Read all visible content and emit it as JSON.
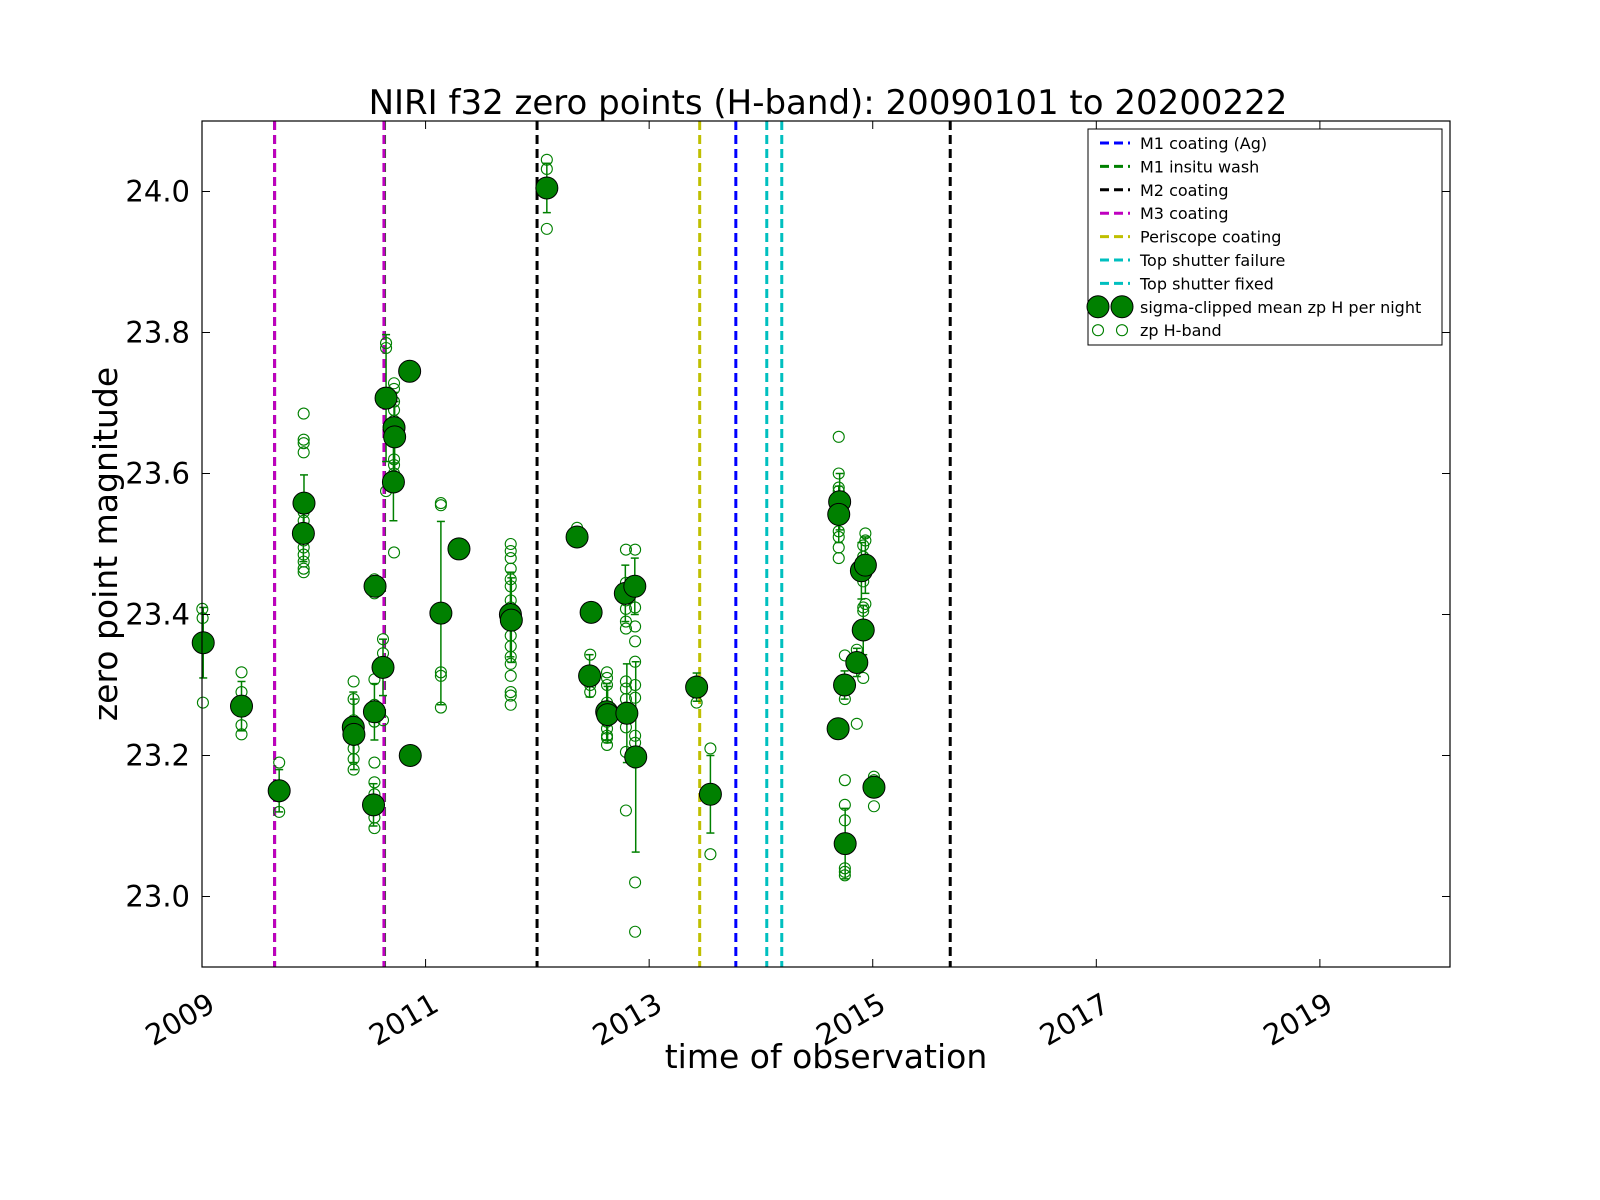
{
  "chart_data": {
    "type": "scatter",
    "title": "NIRI f32 zero points (H-band): 20090101 to 20200222",
    "xlabel": "time of observation",
    "ylabel": "zero point magnitude",
    "xlim": [
      "2009-01-01",
      "2020-03-01"
    ],
    "ylim": [
      22.9,
      24.1
    ],
    "x_ticks": [
      "2009",
      "2011",
      "2013",
      "2015",
      "2017",
      "2019"
    ],
    "y_ticks": [
      "23.0",
      "23.2",
      "23.4",
      "23.6",
      "23.8",
      "24.0"
    ],
    "legend_position": "top-right",
    "grid": false,
    "vlines": [
      {
        "label": "M1 coating (Ag)",
        "color": "#0000ff",
        "dates": [
          "2013-10-11"
        ]
      },
      {
        "label": "M1 insitu wash",
        "color": "#008000",
        "dates": [
          "2009-08-26",
          "2010-08-20"
        ]
      },
      {
        "label": "M2 coating",
        "color": "#000000",
        "dates": [
          "2011-12-31",
          "2015-09-11"
        ]
      },
      {
        "label": "M3 coating",
        "color": "#bf00bf",
        "dates": [
          "2009-08-26",
          "2010-08-18"
        ]
      },
      {
        "label": "Periscope coating",
        "color": "#bfbf00",
        "dates": [
          "2013-06-15"
        ]
      },
      {
        "label": "Top shutter failure",
        "color": "#00bfbf",
        "dates": [
          "2014-01-20"
        ]
      },
      {
        "label": "Top shutter fixed",
        "color": "#00bfbf",
        "dates": [
          "2014-03-10"
        ]
      }
    ],
    "series": [
      {
        "name": "sigma-clipped mean zp H per night",
        "marker": "filled-circle",
        "color": "#008000",
        "points": [
          {
            "x": "2009-01-05",
            "y": 23.36,
            "err": 0.05
          },
          {
            "x": "2009-05-10",
            "y": 23.27,
            "err": 0.035
          },
          {
            "x": "2009-09-10",
            "y": 23.15,
            "err": 0.03
          },
          {
            "x": "2009-11-28",
            "y": 23.515,
            "err": 0.04
          },
          {
            "x": "2009-11-30",
            "y": 23.558,
            "err": 0.04
          },
          {
            "x": "2010-05-10",
            "y": 23.24,
            "err": 0.05
          },
          {
            "x": "2010-05-12",
            "y": 23.23,
            "err": 0.05
          },
          {
            "x": "2010-07-20",
            "y": 23.44,
            "err": 0.01
          },
          {
            "x": "2010-07-18",
            "y": 23.262,
            "err": 0.04
          },
          {
            "x": "2010-07-15",
            "y": 23.13,
            "err": 0.03
          },
          {
            "x": "2010-08-15",
            "y": 23.325,
            "err": 0.04
          },
          {
            "x": "2010-08-25",
            "y": 23.707,
            "err": 0.09
          },
          {
            "x": "2010-09-20",
            "y": 23.665,
            "err": 0.05
          },
          {
            "x": "2010-09-22",
            "y": 23.652,
            "err": 0.05
          },
          {
            "x": "2010-09-18",
            "y": 23.588,
            "err": 0.055
          },
          {
            "x": "2010-11-10",
            "y": 23.745,
            "err": 0.0
          },
          {
            "x": "2010-11-12",
            "y": 23.2,
            "err": 0.0
          },
          {
            "x": "2011-02-20",
            "y": 23.402,
            "err": 0.13
          },
          {
            "x": "2011-04-20",
            "y": 23.493,
            "err": 0.0
          },
          {
            "x": "2011-10-05",
            "y": 23.4,
            "err": 0.06
          },
          {
            "x": "2011-10-08",
            "y": 23.392,
            "err": 0.06
          },
          {
            "x": "2012-02-01",
            "y": 24.005,
            "err": 0.035
          },
          {
            "x": "2012-05-10",
            "y": 23.51,
            "err": 0.01
          },
          {
            "x": "2012-06-25",
            "y": 23.403,
            "err": 0.0
          },
          {
            "x": "2012-06-20",
            "y": 23.313,
            "err": 0.03
          },
          {
            "x": "2012-08-15",
            "y": 23.262,
            "err": 0.04
          },
          {
            "x": "2012-08-18",
            "y": 23.258,
            "err": 0.04
          },
          {
            "x": "2012-10-15",
            "y": 23.43,
            "err": 0.04
          },
          {
            "x": "2012-10-20",
            "y": 23.26,
            "err": 0.07
          },
          {
            "x": "2012-11-15",
            "y": 23.44,
            "err": 0.04
          },
          {
            "x": "2012-11-18",
            "y": 23.198,
            "err": 0.135
          },
          {
            "x": "2013-06-05",
            "y": 23.297,
            "err": 0.02
          },
          {
            "x": "2013-07-20",
            "y": 23.145,
            "err": 0.055
          },
          {
            "x": "2014-09-15",
            "y": 23.56,
            "err": 0.04
          },
          {
            "x": "2014-09-12",
            "y": 23.542,
            "err": 0.04
          },
          {
            "x": "2014-09-10",
            "y": 23.238,
            "err": 0.01
          },
          {
            "x": "2014-10-01",
            "y": 23.3,
            "err": 0.02
          },
          {
            "x": "2014-10-03",
            "y": 23.075,
            "err": 0.05
          },
          {
            "x": "2014-11-10",
            "y": 23.332,
            "err": 0.02
          },
          {
            "x": "2014-11-25",
            "y": 23.462,
            "err": 0.04
          },
          {
            "x": "2014-12-01",
            "y": 23.378,
            "err": 0.035
          },
          {
            "x": "2014-12-08",
            "y": 23.47,
            "err": 0.04
          },
          {
            "x": "2015-01-05",
            "y": 23.155,
            "err": 0.01
          }
        ]
      },
      {
        "name": "zp H-band",
        "marker": "open-circle",
        "color": "#008000",
        "points": [
          {
            "x": "2009-01-02",
            "y": 23.408
          },
          {
            "x": "2009-01-03",
            "y": 23.395
          },
          {
            "x": "2009-01-04",
            "y": 23.275
          },
          {
            "x": "2009-05-10",
            "y": 23.318
          },
          {
            "x": "2009-05-10",
            "y": 23.29
          },
          {
            "x": "2009-05-10",
            "y": 23.243
          },
          {
            "x": "2009-05-10",
            "y": 23.23
          },
          {
            "x": "2009-09-10",
            "y": 23.19
          },
          {
            "x": "2009-09-10",
            "y": 23.142
          },
          {
            "x": "2009-09-10",
            "y": 23.12
          },
          {
            "x": "2009-11-29",
            "y": 23.685
          },
          {
            "x": "2009-11-29",
            "y": 23.648
          },
          {
            "x": "2009-11-29",
            "y": 23.643
          },
          {
            "x": "2009-11-29",
            "y": 23.63
          },
          {
            "x": "2009-11-29",
            "y": 23.545
          },
          {
            "x": "2009-11-29",
            "y": 23.533
          },
          {
            "x": "2009-11-29",
            "y": 23.52
          },
          {
            "x": "2009-11-29",
            "y": 23.505
          },
          {
            "x": "2009-11-29",
            "y": 23.495
          },
          {
            "x": "2009-11-29",
            "y": 23.485
          },
          {
            "x": "2009-11-29",
            "y": 23.475
          },
          {
            "x": "2009-11-29",
            "y": 23.465
          },
          {
            "x": "2009-11-29",
            "y": 23.46
          },
          {
            "x": "2010-05-11",
            "y": 23.305
          },
          {
            "x": "2010-05-11",
            "y": 23.28
          },
          {
            "x": "2010-05-11",
            "y": 23.25
          },
          {
            "x": "2010-05-11",
            "y": 23.222
          },
          {
            "x": "2010-05-11",
            "y": 23.21
          },
          {
            "x": "2010-05-11",
            "y": 23.195
          },
          {
            "x": "2010-05-11",
            "y": 23.18
          },
          {
            "x": "2010-07-18",
            "y": 23.45
          },
          {
            "x": "2010-07-18",
            "y": 23.435
          },
          {
            "x": "2010-07-18",
            "y": 23.43
          },
          {
            "x": "2010-07-18",
            "y": 23.308
          },
          {
            "x": "2010-07-18",
            "y": 23.272
          },
          {
            "x": "2010-07-18",
            "y": 23.248
          },
          {
            "x": "2010-07-18",
            "y": 23.19
          },
          {
            "x": "2010-07-18",
            "y": 23.162
          },
          {
            "x": "2010-07-18",
            "y": 23.145
          },
          {
            "x": "2010-07-18",
            "y": 23.112
          },
          {
            "x": "2010-07-18",
            "y": 23.097
          },
          {
            "x": "2010-08-15",
            "y": 23.365
          },
          {
            "x": "2010-08-15",
            "y": 23.345
          },
          {
            "x": "2010-08-15",
            "y": 23.25
          },
          {
            "x": "2010-08-25",
            "y": 23.785
          },
          {
            "x": "2010-08-25",
            "y": 23.778
          },
          {
            "x": "2010-08-25",
            "y": 23.575
          },
          {
            "x": "2010-09-20",
            "y": 23.728
          },
          {
            "x": "2010-09-20",
            "y": 23.72
          },
          {
            "x": "2010-09-20",
            "y": 23.702
          },
          {
            "x": "2010-09-20",
            "y": 23.69
          },
          {
            "x": "2010-09-20",
            "y": 23.675
          },
          {
            "x": "2010-09-20",
            "y": 23.645
          },
          {
            "x": "2010-09-20",
            "y": 23.62
          },
          {
            "x": "2010-09-20",
            "y": 23.612
          },
          {
            "x": "2010-09-20",
            "y": 23.6
          },
          {
            "x": "2010-09-20",
            "y": 23.488
          },
          {
            "x": "2011-02-20",
            "y": 23.558
          },
          {
            "x": "2011-02-20",
            "y": 23.555
          },
          {
            "x": "2011-02-20",
            "y": 23.318
          },
          {
            "x": "2011-02-20",
            "y": 23.313
          },
          {
            "x": "2011-02-20",
            "y": 23.268
          },
          {
            "x": "2011-10-06",
            "y": 23.5
          },
          {
            "x": "2011-10-06",
            "y": 23.49
          },
          {
            "x": "2011-10-06",
            "y": 23.48
          },
          {
            "x": "2011-10-06",
            "y": 23.465
          },
          {
            "x": "2011-10-06",
            "y": 23.45
          },
          {
            "x": "2011-10-06",
            "y": 23.44
          },
          {
            "x": "2011-10-06",
            "y": 23.42
          },
          {
            "x": "2011-10-06",
            "y": 23.41
          },
          {
            "x": "2011-10-06",
            "y": 23.385
          },
          {
            "x": "2011-10-06",
            "y": 23.37
          },
          {
            "x": "2011-10-06",
            "y": 23.355
          },
          {
            "x": "2011-10-06",
            "y": 23.34
          },
          {
            "x": "2011-10-06",
            "y": 23.33
          },
          {
            "x": "2011-10-06",
            "y": 23.313
          },
          {
            "x": "2011-10-06",
            "y": 23.29
          },
          {
            "x": "2011-10-06",
            "y": 23.285
          },
          {
            "x": "2011-10-06",
            "y": 23.272
          },
          {
            "x": "2012-02-01",
            "y": 24.045
          },
          {
            "x": "2012-02-01",
            "y": 24.032
          },
          {
            "x": "2012-02-01",
            "y": 23.947
          },
          {
            "x": "2012-05-10",
            "y": 23.523
          },
          {
            "x": "2012-05-10",
            "y": 23.508
          },
          {
            "x": "2012-05-10",
            "y": 23.503
          },
          {
            "x": "2012-06-22",
            "y": 23.343
          },
          {
            "x": "2012-06-22",
            "y": 23.318
          },
          {
            "x": "2012-06-22",
            "y": 23.305
          },
          {
            "x": "2012-06-22",
            "y": 23.3
          },
          {
            "x": "2012-06-22",
            "y": 23.29
          },
          {
            "x": "2012-08-16",
            "y": 23.318
          },
          {
            "x": "2012-08-16",
            "y": 23.31
          },
          {
            "x": "2012-08-16",
            "y": 23.3
          },
          {
            "x": "2012-08-16",
            "y": 23.275
          },
          {
            "x": "2012-08-16",
            "y": 23.248
          },
          {
            "x": "2012-08-16",
            "y": 23.238
          },
          {
            "x": "2012-08-16",
            "y": 23.228
          },
          {
            "x": "2012-08-16",
            "y": 23.225
          },
          {
            "x": "2012-08-16",
            "y": 23.215
          },
          {
            "x": "2012-10-17",
            "y": 23.492
          },
          {
            "x": "2012-10-17",
            "y": 23.445
          },
          {
            "x": "2012-10-17",
            "y": 23.43
          },
          {
            "x": "2012-10-17",
            "y": 23.42
          },
          {
            "x": "2012-10-17",
            "y": 23.408
          },
          {
            "x": "2012-10-17",
            "y": 23.39
          },
          {
            "x": "2012-10-17",
            "y": 23.38
          },
          {
            "x": "2012-10-17",
            "y": 23.305
          },
          {
            "x": "2012-10-17",
            "y": 23.295
          },
          {
            "x": "2012-10-17",
            "y": 23.28
          },
          {
            "x": "2012-10-17",
            "y": 23.268
          },
          {
            "x": "2012-10-17",
            "y": 23.24
          },
          {
            "x": "2012-10-17",
            "y": 23.205
          },
          {
            "x": "2012-10-17",
            "y": 23.122
          },
          {
            "x": "2012-11-16",
            "y": 23.492
          },
          {
            "x": "2012-11-16",
            "y": 23.445
          },
          {
            "x": "2012-11-16",
            "y": 23.41
          },
          {
            "x": "2012-11-16",
            "y": 23.383
          },
          {
            "x": "2012-11-16",
            "y": 23.362
          },
          {
            "x": "2012-11-16",
            "y": 23.333
          },
          {
            "x": "2012-11-16",
            "y": 23.3
          },
          {
            "x": "2012-11-16",
            "y": 23.282
          },
          {
            "x": "2012-11-16",
            "y": 23.228
          },
          {
            "x": "2012-11-16",
            "y": 23.218
          },
          {
            "x": "2012-11-16",
            "y": 23.2
          },
          {
            "x": "2012-11-16",
            "y": 23.19
          },
          {
            "x": "2012-11-16",
            "y": 23.02
          },
          {
            "x": "2012-11-16",
            "y": 22.95
          },
          {
            "x": "2013-06-05",
            "y": 23.305
          },
          {
            "x": "2013-06-05",
            "y": 23.275
          },
          {
            "x": "2013-07-20",
            "y": 23.21
          },
          {
            "x": "2013-07-20",
            "y": 23.152
          },
          {
            "x": "2013-07-20",
            "y": 23.06
          },
          {
            "x": "2014-09-12",
            "y": 23.652
          },
          {
            "x": "2014-09-12",
            "y": 23.6
          },
          {
            "x": "2014-09-12",
            "y": 23.58
          },
          {
            "x": "2014-09-12",
            "y": 23.575
          },
          {
            "x": "2014-09-12",
            "y": 23.535
          },
          {
            "x": "2014-09-12",
            "y": 23.518
          },
          {
            "x": "2014-09-12",
            "y": 23.51
          },
          {
            "x": "2014-09-12",
            "y": 23.495
          },
          {
            "x": "2014-09-12",
            "y": 23.48
          },
          {
            "x": "2014-09-12",
            "y": 23.245
          },
          {
            "x": "2014-10-02",
            "y": 23.342
          },
          {
            "x": "2014-10-02",
            "y": 23.305
          },
          {
            "x": "2014-10-02",
            "y": 23.28
          },
          {
            "x": "2014-10-02",
            "y": 23.165
          },
          {
            "x": "2014-10-02",
            "y": 23.13
          },
          {
            "x": "2014-10-02",
            "y": 23.108
          },
          {
            "x": "2014-10-02",
            "y": 23.04
          },
          {
            "x": "2014-10-02",
            "y": 23.035
          },
          {
            "x": "2014-10-02",
            "y": 23.03
          },
          {
            "x": "2014-11-10",
            "y": 23.35
          },
          {
            "x": "2014-11-10",
            "y": 23.245
          },
          {
            "x": "2014-12-01",
            "y": 23.498
          },
          {
            "x": "2014-12-01",
            "y": 23.482
          },
          {
            "x": "2014-12-01",
            "y": 23.455
          },
          {
            "x": "2014-12-01",
            "y": 23.447
          },
          {
            "x": "2014-12-01",
            "y": 23.41
          },
          {
            "x": "2014-12-01",
            "y": 23.405
          },
          {
            "x": "2014-12-01",
            "y": 23.38
          },
          {
            "x": "2014-12-01",
            "y": 23.31
          },
          {
            "x": "2014-12-08",
            "y": 23.515
          },
          {
            "x": "2014-12-08",
            "y": 23.505
          },
          {
            "x": "2014-12-08",
            "y": 23.415
          },
          {
            "x": "2015-01-05",
            "y": 23.17
          },
          {
            "x": "2015-01-05",
            "y": 23.165
          },
          {
            "x": "2015-01-05",
            "y": 23.128
          }
        ]
      }
    ]
  }
}
